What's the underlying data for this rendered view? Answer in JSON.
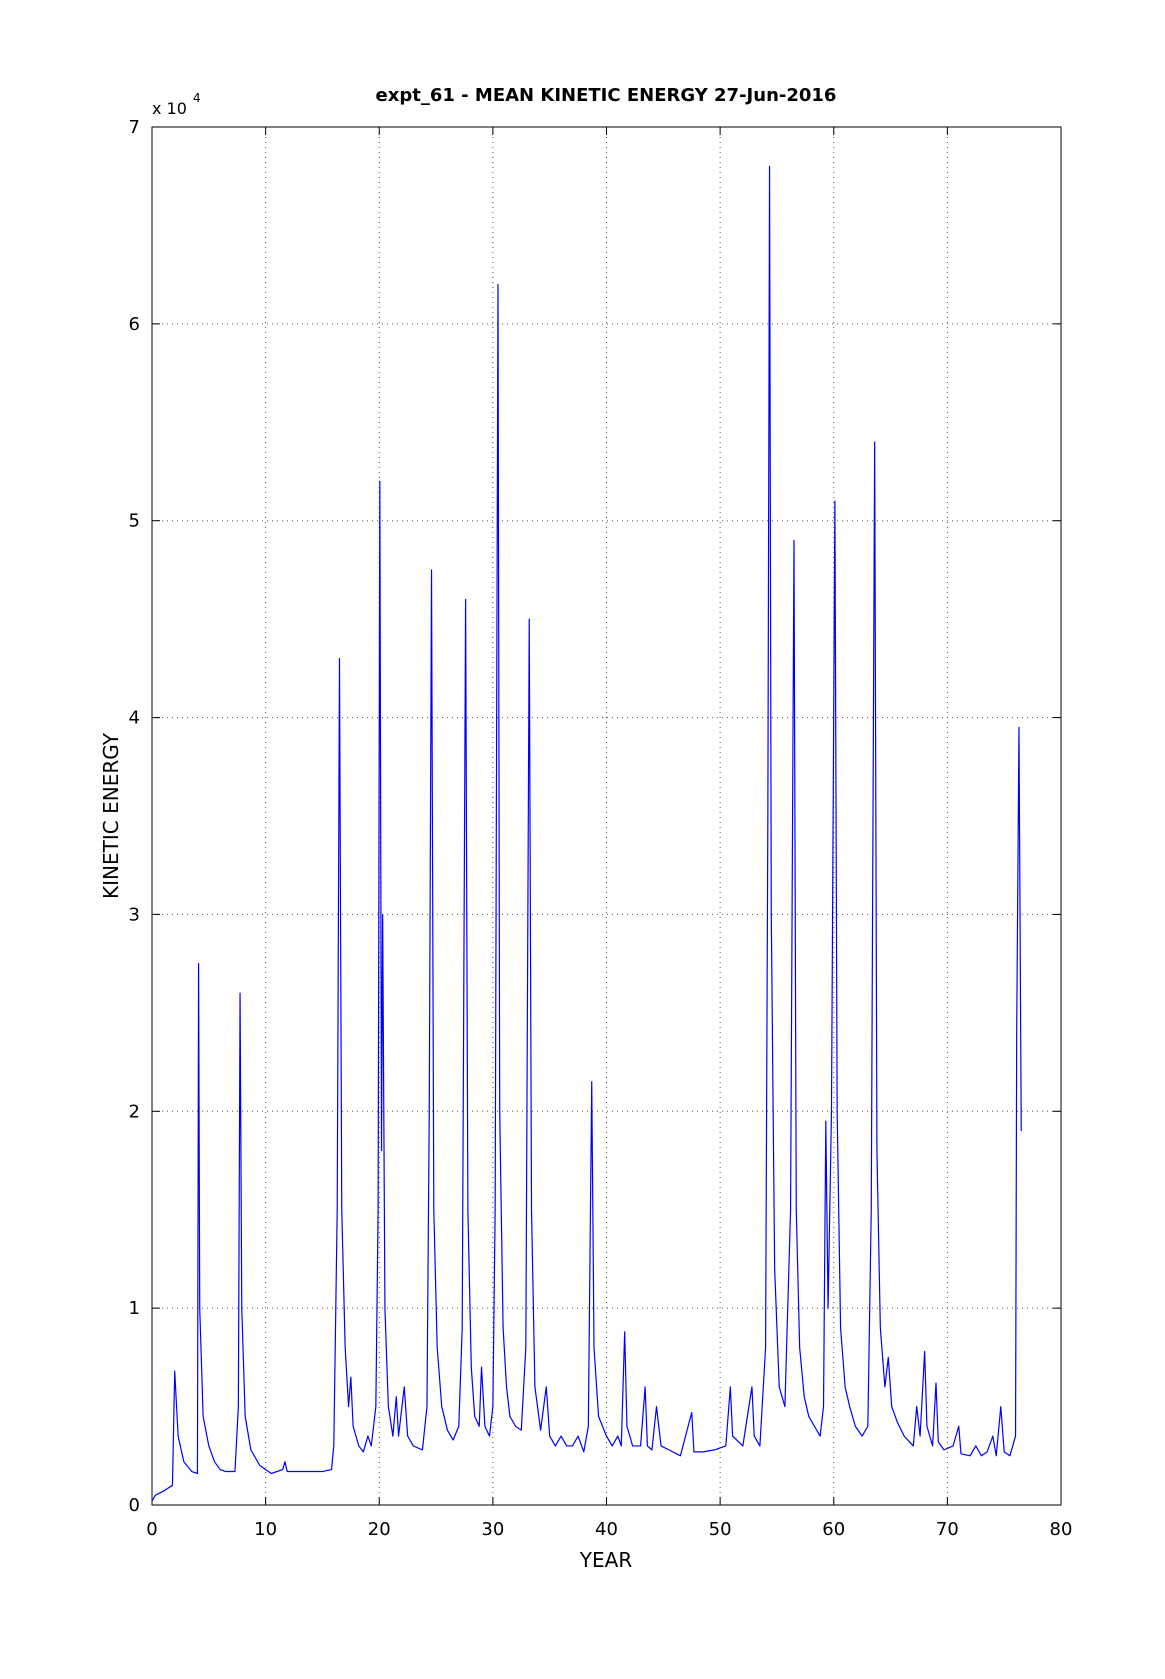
{
  "chart_data": {
    "type": "line",
    "title": "expt_61 - MEAN KINETIC ENERGY 27-Jun-2016",
    "x_label": "YEAR",
    "y_label": "KINETIC ENERGY",
    "y_multiplier": "x 10",
    "y_multiplier_exponent": "4",
    "xlim": [
      0,
      80
    ],
    "xticks": [
      0,
      10,
      20,
      30,
      40,
      50,
      60,
      70,
      80
    ],
    "ylim": [
      0,
      7
    ],
    "yticks": [
      0,
      1,
      2,
      3,
      4,
      5,
      6,
      7
    ],
    "grid": true,
    "series": [
      {
        "color": "#0000ff",
        "x": [
          0,
          0.3,
          1,
          1.8,
          2.0,
          2.3,
          2.8,
          3.5,
          4.0,
          4.1,
          4.2,
          4.5,
          5,
          5.5,
          6,
          6.5,
          7.3,
          7.6,
          7.75,
          7.9,
          8.2,
          8.7,
          9.5,
          10.5,
          11.5,
          11.7,
          11.9,
          13,
          14,
          15,
          15.8,
          16.0,
          16.3,
          16.5,
          16.7,
          17,
          17.3,
          17.5,
          17.7,
          18.2,
          18.6,
          19,
          19.3,
          19.7,
          19.9,
          20.05,
          20.2,
          20.3,
          20.5,
          20.8,
          21.2,
          21.5,
          21.7,
          22.2,
          22.5,
          23,
          23.8,
          24.2,
          24.4,
          24.6,
          24.8,
          25.1,
          25.5,
          26,
          26.5,
          27,
          27.3,
          27.6,
          27.8,
          28.1,
          28.4,
          28.8,
          29.0,
          29.3,
          29.7,
          30.0,
          30.2,
          30.45,
          30.6,
          30.9,
          31.2,
          31.5,
          32,
          32.5,
          32.9,
          33.2,
          33.4,
          33.7,
          34.2,
          34.7,
          35,
          35.5,
          36,
          36.5,
          37,
          37.5,
          38,
          38.4,
          38.7,
          38.9,
          39.3,
          40,
          40.5,
          41,
          41.3,
          41.6,
          41.8,
          42.3,
          43,
          43.4,
          43.6,
          44,
          44.4,
          44.8,
          45.5,
          46.5,
          47.5,
          47.7,
          48.5,
          49.5,
          50.5,
          50.9,
          51.1,
          52,
          52.8,
          53,
          53.5,
          54,
          54.2,
          54.35,
          54.5,
          54.8,
          55.2,
          55.7,
          56.2,
          56.5,
          56.7,
          57,
          57.4,
          57.8,
          58.3,
          58.8,
          59.1,
          59.3,
          59.5,
          59.8,
          60.1,
          60.3,
          60.6,
          61,
          61.4,
          61.9,
          62.5,
          63,
          63.3,
          63.6,
          63.8,
          64.1,
          64.5,
          64.8,
          65.1,
          65.6,
          66.2,
          67,
          67.3,
          67.6,
          68,
          68.2,
          68.7,
          69,
          69.2,
          69.7,
          70.5,
          71,
          71.2,
          72,
          72.5,
          73,
          73.5,
          74,
          74.3,
          74.7,
          75,
          75.5,
          76,
          76.1,
          76.3,
          76.5
        ],
        "values": [
          0.02,
          0.05,
          0.07,
          0.1,
          0.68,
          0.35,
          0.22,
          0.17,
          0.16,
          2.75,
          1.0,
          0.45,
          0.3,
          0.22,
          0.18,
          0.17,
          0.17,
          0.5,
          2.6,
          1.0,
          0.45,
          0.28,
          0.2,
          0.16,
          0.18,
          0.22,
          0.17,
          0.17,
          0.17,
          0.17,
          0.18,
          0.3,
          1.5,
          4.3,
          1.5,
          0.8,
          0.5,
          0.65,
          0.4,
          0.3,
          0.27,
          0.35,
          0.3,
          0.5,
          1.5,
          5.2,
          1.8,
          3.0,
          1.0,
          0.5,
          0.35,
          0.55,
          0.35,
          0.6,
          0.35,
          0.3,
          0.28,
          0.5,
          2.0,
          4.75,
          1.5,
          0.8,
          0.5,
          0.38,
          0.33,
          0.4,
          0.9,
          4.6,
          1.5,
          0.7,
          0.45,
          0.4,
          0.7,
          0.4,
          0.35,
          0.5,
          1.5,
          6.2,
          2.0,
          0.9,
          0.6,
          0.45,
          0.4,
          0.38,
          0.8,
          4.5,
          1.5,
          0.6,
          0.38,
          0.6,
          0.35,
          0.3,
          0.35,
          0.3,
          0.3,
          0.35,
          0.27,
          0.4,
          2.15,
          0.8,
          0.45,
          0.35,
          0.3,
          0.35,
          0.3,
          0.88,
          0.4,
          0.3,
          0.3,
          0.6,
          0.3,
          0.28,
          0.5,
          0.3,
          0.28,
          0.25,
          0.47,
          0.27,
          0.27,
          0.28,
          0.3,
          0.6,
          0.35,
          0.3,
          0.6,
          0.35,
          0.3,
          0.8,
          3.5,
          6.8,
          3.0,
          1.2,
          0.6,
          0.5,
          1.5,
          4.9,
          1.5,
          0.8,
          0.55,
          0.45,
          0.4,
          0.35,
          0.5,
          1.95,
          1.0,
          2.0,
          5.1,
          2.0,
          0.9,
          0.6,
          0.5,
          0.4,
          0.35,
          0.4,
          1.5,
          5.4,
          1.8,
          0.9,
          0.6,
          0.75,
          0.5,
          0.42,
          0.35,
          0.3,
          0.5,
          0.35,
          0.78,
          0.4,
          0.3,
          0.62,
          0.32,
          0.28,
          0.3,
          0.4,
          0.26,
          0.25,
          0.3,
          0.25,
          0.27,
          0.35,
          0.25,
          0.5,
          0.27,
          0.25,
          0.35,
          2.4,
          3.95,
          1.9
        ]
      }
    ]
  }
}
